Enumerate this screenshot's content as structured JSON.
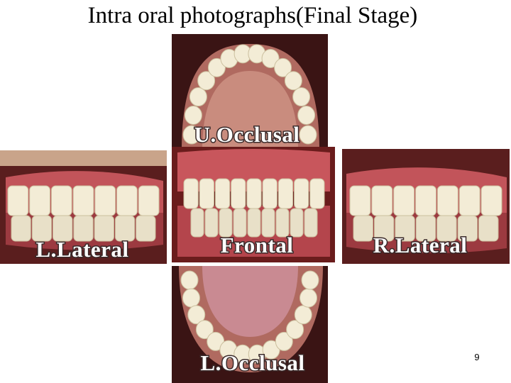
{
  "title": "Intra oral photographs(Final Stage)",
  "photos": [
    {
      "label": "U.Occlusal"
    },
    {
      "label": "L.Lateral"
    },
    {
      "label": "Frontal"
    },
    {
      "label": "R.Lateral"
    },
    {
      "label": "L.Occlusal"
    }
  ],
  "page_number": "9"
}
